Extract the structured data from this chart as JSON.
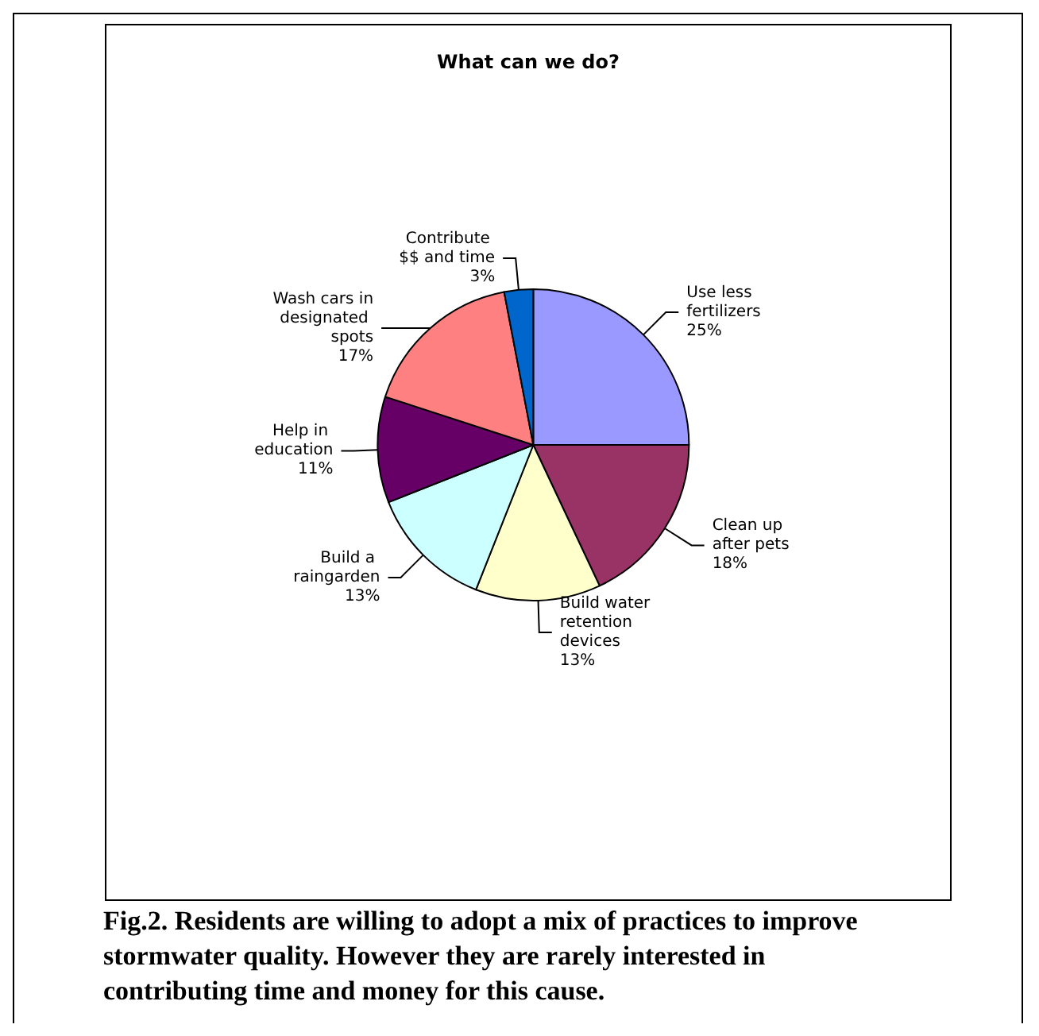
{
  "chart_data": {
    "type": "pie",
    "title": "What can we do?",
    "categories": [
      "Use less fertilizers",
      "Clean up after pets",
      "Build water retention devices",
      "Build a raingarden",
      "Help in education",
      "Wash cars in designated spots",
      "Contribute $$ and time"
    ],
    "values": [
      25,
      18,
      13,
      13,
      11,
      17,
      3
    ],
    "value_labels": [
      "25%",
      "18%",
      "13%",
      "13%",
      "11%",
      "17%",
      "3%"
    ],
    "colors": [
      "#9999ff",
      "#993366",
      "#ffffcc",
      "#ccffff",
      "#660066",
      "#ff8080",
      "#0066cc"
    ],
    "legend": false,
    "annotations": [
      "Fig.2. Residents are willing to adopt a mix of practices to improve stormwater quality. However they are rarely interested in contributing time and money for this cause."
    ]
  }
}
